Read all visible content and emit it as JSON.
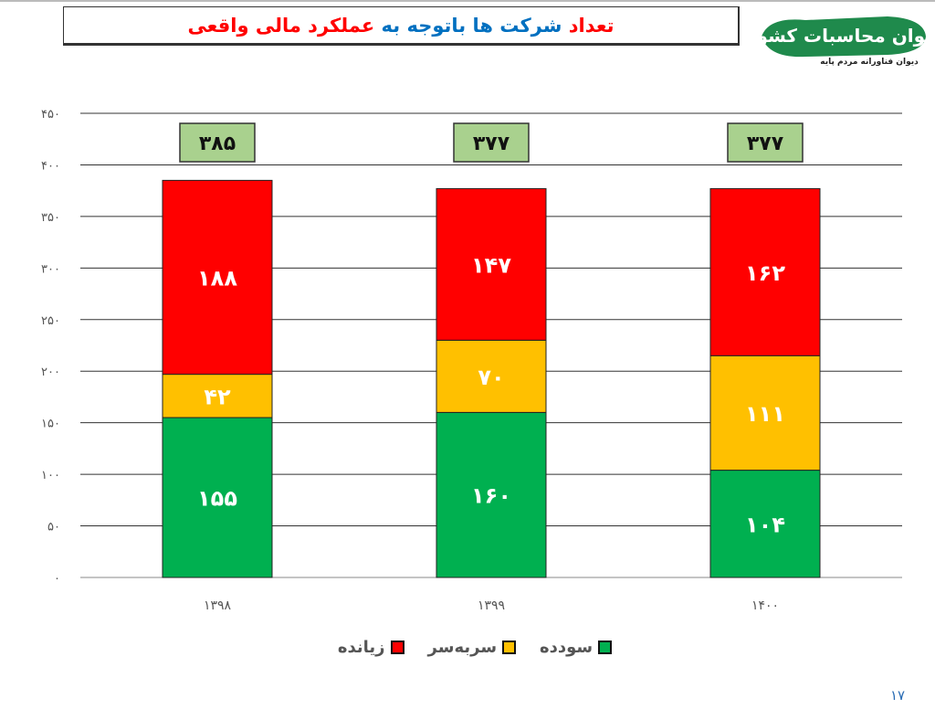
{
  "header": {
    "title_parts": [
      {
        "text": "تعداد ",
        "color": "#ff0000"
      },
      {
        "text": "شرکت ها باتوجه به ",
        "color": "#0070c0"
      },
      {
        "text": "عملکرد مالی واقعی",
        "color": "#ff0000"
      }
    ],
    "logo_text": "دیوان محاسبات کشور",
    "logo_subtitle": "دیوان فناورانه مردم پایه"
  },
  "chart_data": {
    "type": "bar",
    "stacked": true,
    "title": "تعداد شرکت ها باتوجه به عملکرد مالی واقعی",
    "categories": [
      "۱۳۹۸",
      "۱۳۹۹",
      "۱۴۰۰"
    ],
    "series": [
      {
        "name": "سودده",
        "color": "#00b050",
        "values": [
          155,
          160,
          104
        ],
        "labels": [
          "۱۵۵",
          "۱۶۰",
          "۱۰۴"
        ]
      },
      {
        "name": "سربه‌سر",
        "color": "#ffc000",
        "values": [
          42,
          70,
          111
        ],
        "labels": [
          "۴۲",
          "۷۰",
          "۱۱۱"
        ]
      },
      {
        "name": "زیانده",
        "color": "#ff0000",
        "values": [
          188,
          147,
          162
        ],
        "labels": [
          "۱۸۸",
          "۱۴۷",
          "۱۶۲"
        ]
      }
    ],
    "totals": [
      385,
      377,
      377
    ],
    "total_labels": [
      "۳۸۵",
      "۳۷۷",
      "۳۷۷"
    ],
    "total_box_color": "#a9d18e",
    "ylim": [
      0,
      450
    ],
    "yticks": [
      0,
      50,
      100,
      150,
      200,
      250,
      300,
      350,
      400,
      450
    ],
    "ytick_labels": [
      "۰",
      "۵۰",
      "۱۰۰",
      "۱۵۰",
      "۲۰۰",
      "۲۵۰",
      "۳۰۰",
      "۳۵۰",
      "۴۰۰",
      "۴۵۰"
    ],
    "grid": true,
    "legend_position": "bottom"
  },
  "footer": {
    "page_number": "۱۷"
  }
}
